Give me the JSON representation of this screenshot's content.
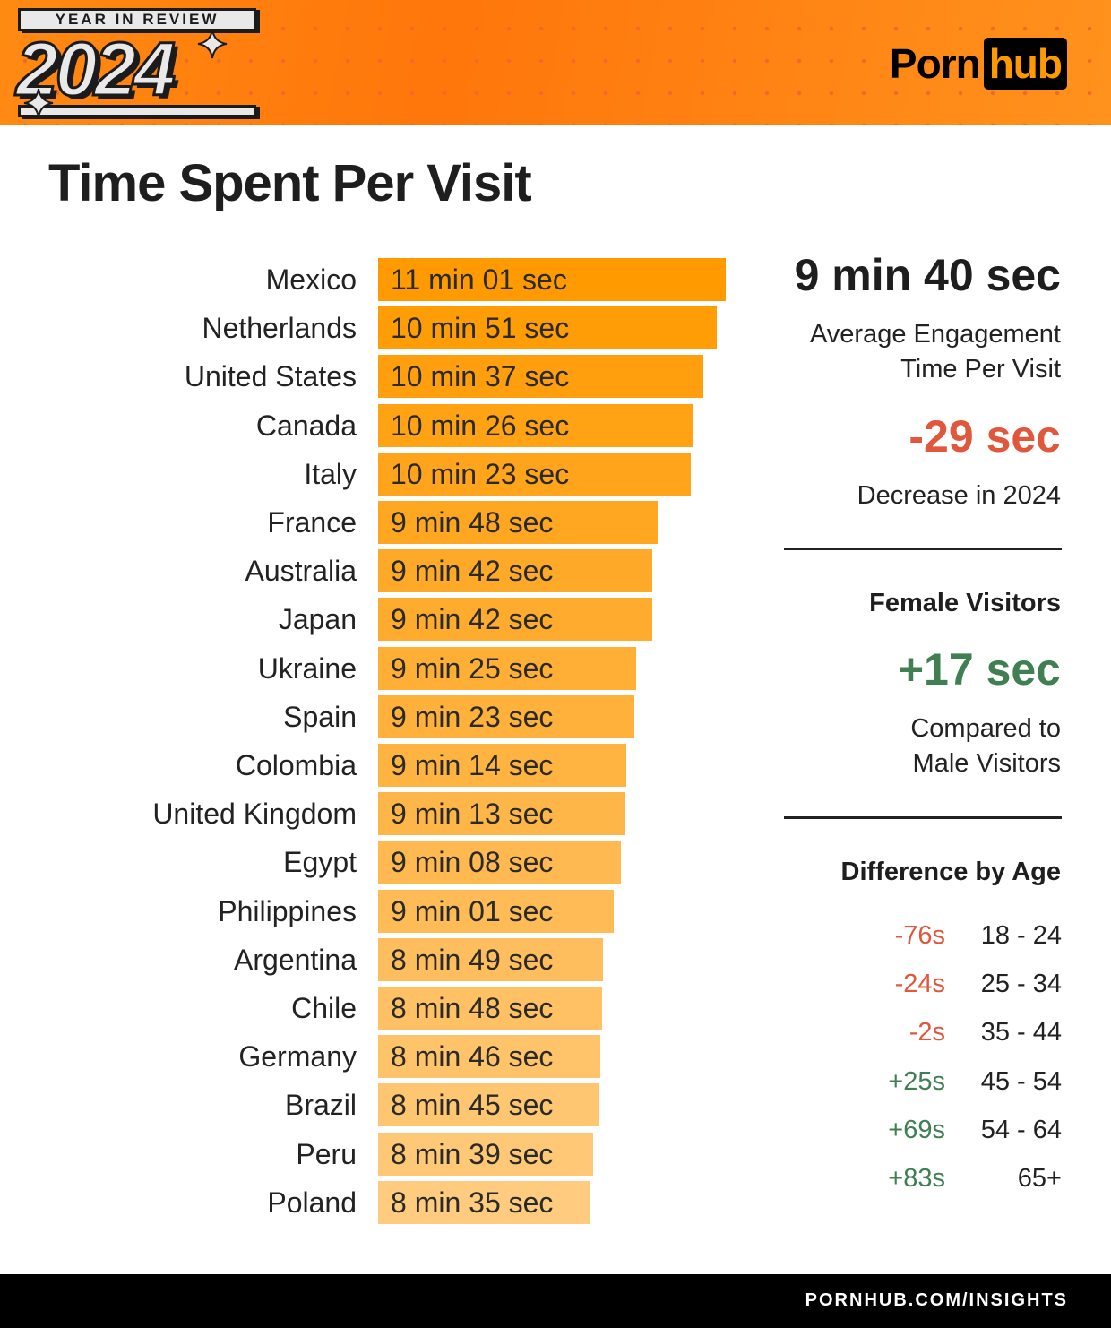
{
  "header": {
    "badge_top": "YEAR IN REVIEW",
    "year": "2024",
    "logo_left": "Porn",
    "logo_right": "hub"
  },
  "title": "Time Spent Per Visit",
  "chart_data": {
    "type": "bar",
    "orientation": "horizontal",
    "title": "Time Spent Per Visit",
    "categories": [
      "Mexico",
      "Netherlands",
      "United States",
      "Canada",
      "Italy",
      "France",
      "Australia",
      "Japan",
      "Ukraine",
      "Spain",
      "Colombia",
      "United Kingdom",
      "Egypt",
      "Philippines",
      "Argentina",
      "Chile",
      "Germany",
      "Brazil",
      "Peru",
      "Poland"
    ],
    "values_seconds": [
      661,
      651,
      637,
      626,
      623,
      588,
      582,
      582,
      565,
      563,
      554,
      553,
      548,
      541,
      529,
      528,
      526,
      525,
      519,
      515
    ],
    "labels": [
      "11 min 01 sec",
      "10 min 51 sec",
      "10 min 37 sec",
      "10 min 26 sec",
      "10 min 23 sec",
      "9 min 48 sec",
      "9 min 42 sec",
      "9 min 42 sec",
      "9 min 25 sec",
      "9 min 23 sec",
      "9 min 14 sec",
      "9 min 13 sec",
      "9 min 08 sec",
      "9 min 01 sec",
      "8 min 49 sec",
      "8 min 48 sec",
      "8 min 46 sec",
      "8 min 45 sec",
      "8 min 39 sec",
      "8 min 35 sec"
    ],
    "color_start": "#ff9a00",
    "color_end": "#ffcb7e"
  },
  "summary": {
    "average": "9 min 40 sec",
    "average_label_1": "Average Engagement",
    "average_label_2": "Time Per Visit",
    "change": "-29 sec",
    "change_label": "Decrease in 2024",
    "female_title": "Female Visitors",
    "female_change": "+17 sec",
    "female_label_1": "Compared to",
    "female_label_2": "Male Visitors",
    "age_title": "Difference by Age",
    "ages": [
      {
        "diff": "-76s",
        "range": "18 - 24",
        "sign": "neg"
      },
      {
        "diff": "-24s",
        "range": "25 - 34",
        "sign": "neg"
      },
      {
        "diff": "-2s",
        "range": "35 - 44",
        "sign": "neg"
      },
      {
        "diff": "+25s",
        "range": "45 - 54",
        "sign": "pos"
      },
      {
        "diff": "+69s",
        "range": "54 - 64",
        "sign": "pos"
      },
      {
        "diff": "+83s",
        "range": "65+",
        "sign": "pos"
      }
    ],
    "negative_color": "#e0573b",
    "positive_color": "#3f7f52"
  },
  "footer": "PORNHUB.COM/INSIGHTS"
}
